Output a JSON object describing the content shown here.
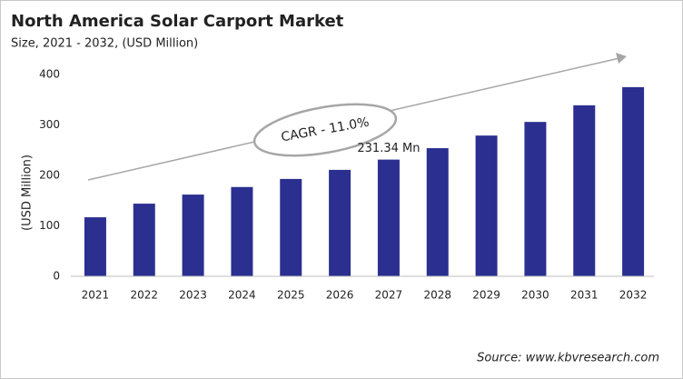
{
  "chart_data": {
    "type": "bar",
    "title": "North America Solar Carport Market",
    "subtitle": "Size, 2021 - 2032, (USD Million)",
    "y_label": "(USD Million)",
    "annotation": "CAGR - 11.0%",
    "source": "Source: www.kbvresearch.com",
    "categories": [
      "2021",
      "2022",
      "2023",
      "2024",
      "2025",
      "2026",
      "2027",
      "2028",
      "2029",
      "2030",
      "2031",
      "2032"
    ],
    "values": [
      117,
      144,
      162,
      177,
      193,
      211,
      231.34,
      254,
      279,
      306,
      339,
      375
    ],
    "value_labels": [
      null,
      null,
      null,
      null,
      null,
      null,
      "231.34 Mn",
      null,
      null,
      null,
      null,
      null
    ],
    "color": "#2b2f8f",
    "ylim": [
      0,
      400
    ],
    "yticks": [
      0,
      100,
      200,
      300,
      400
    ],
    "grid": false
  }
}
